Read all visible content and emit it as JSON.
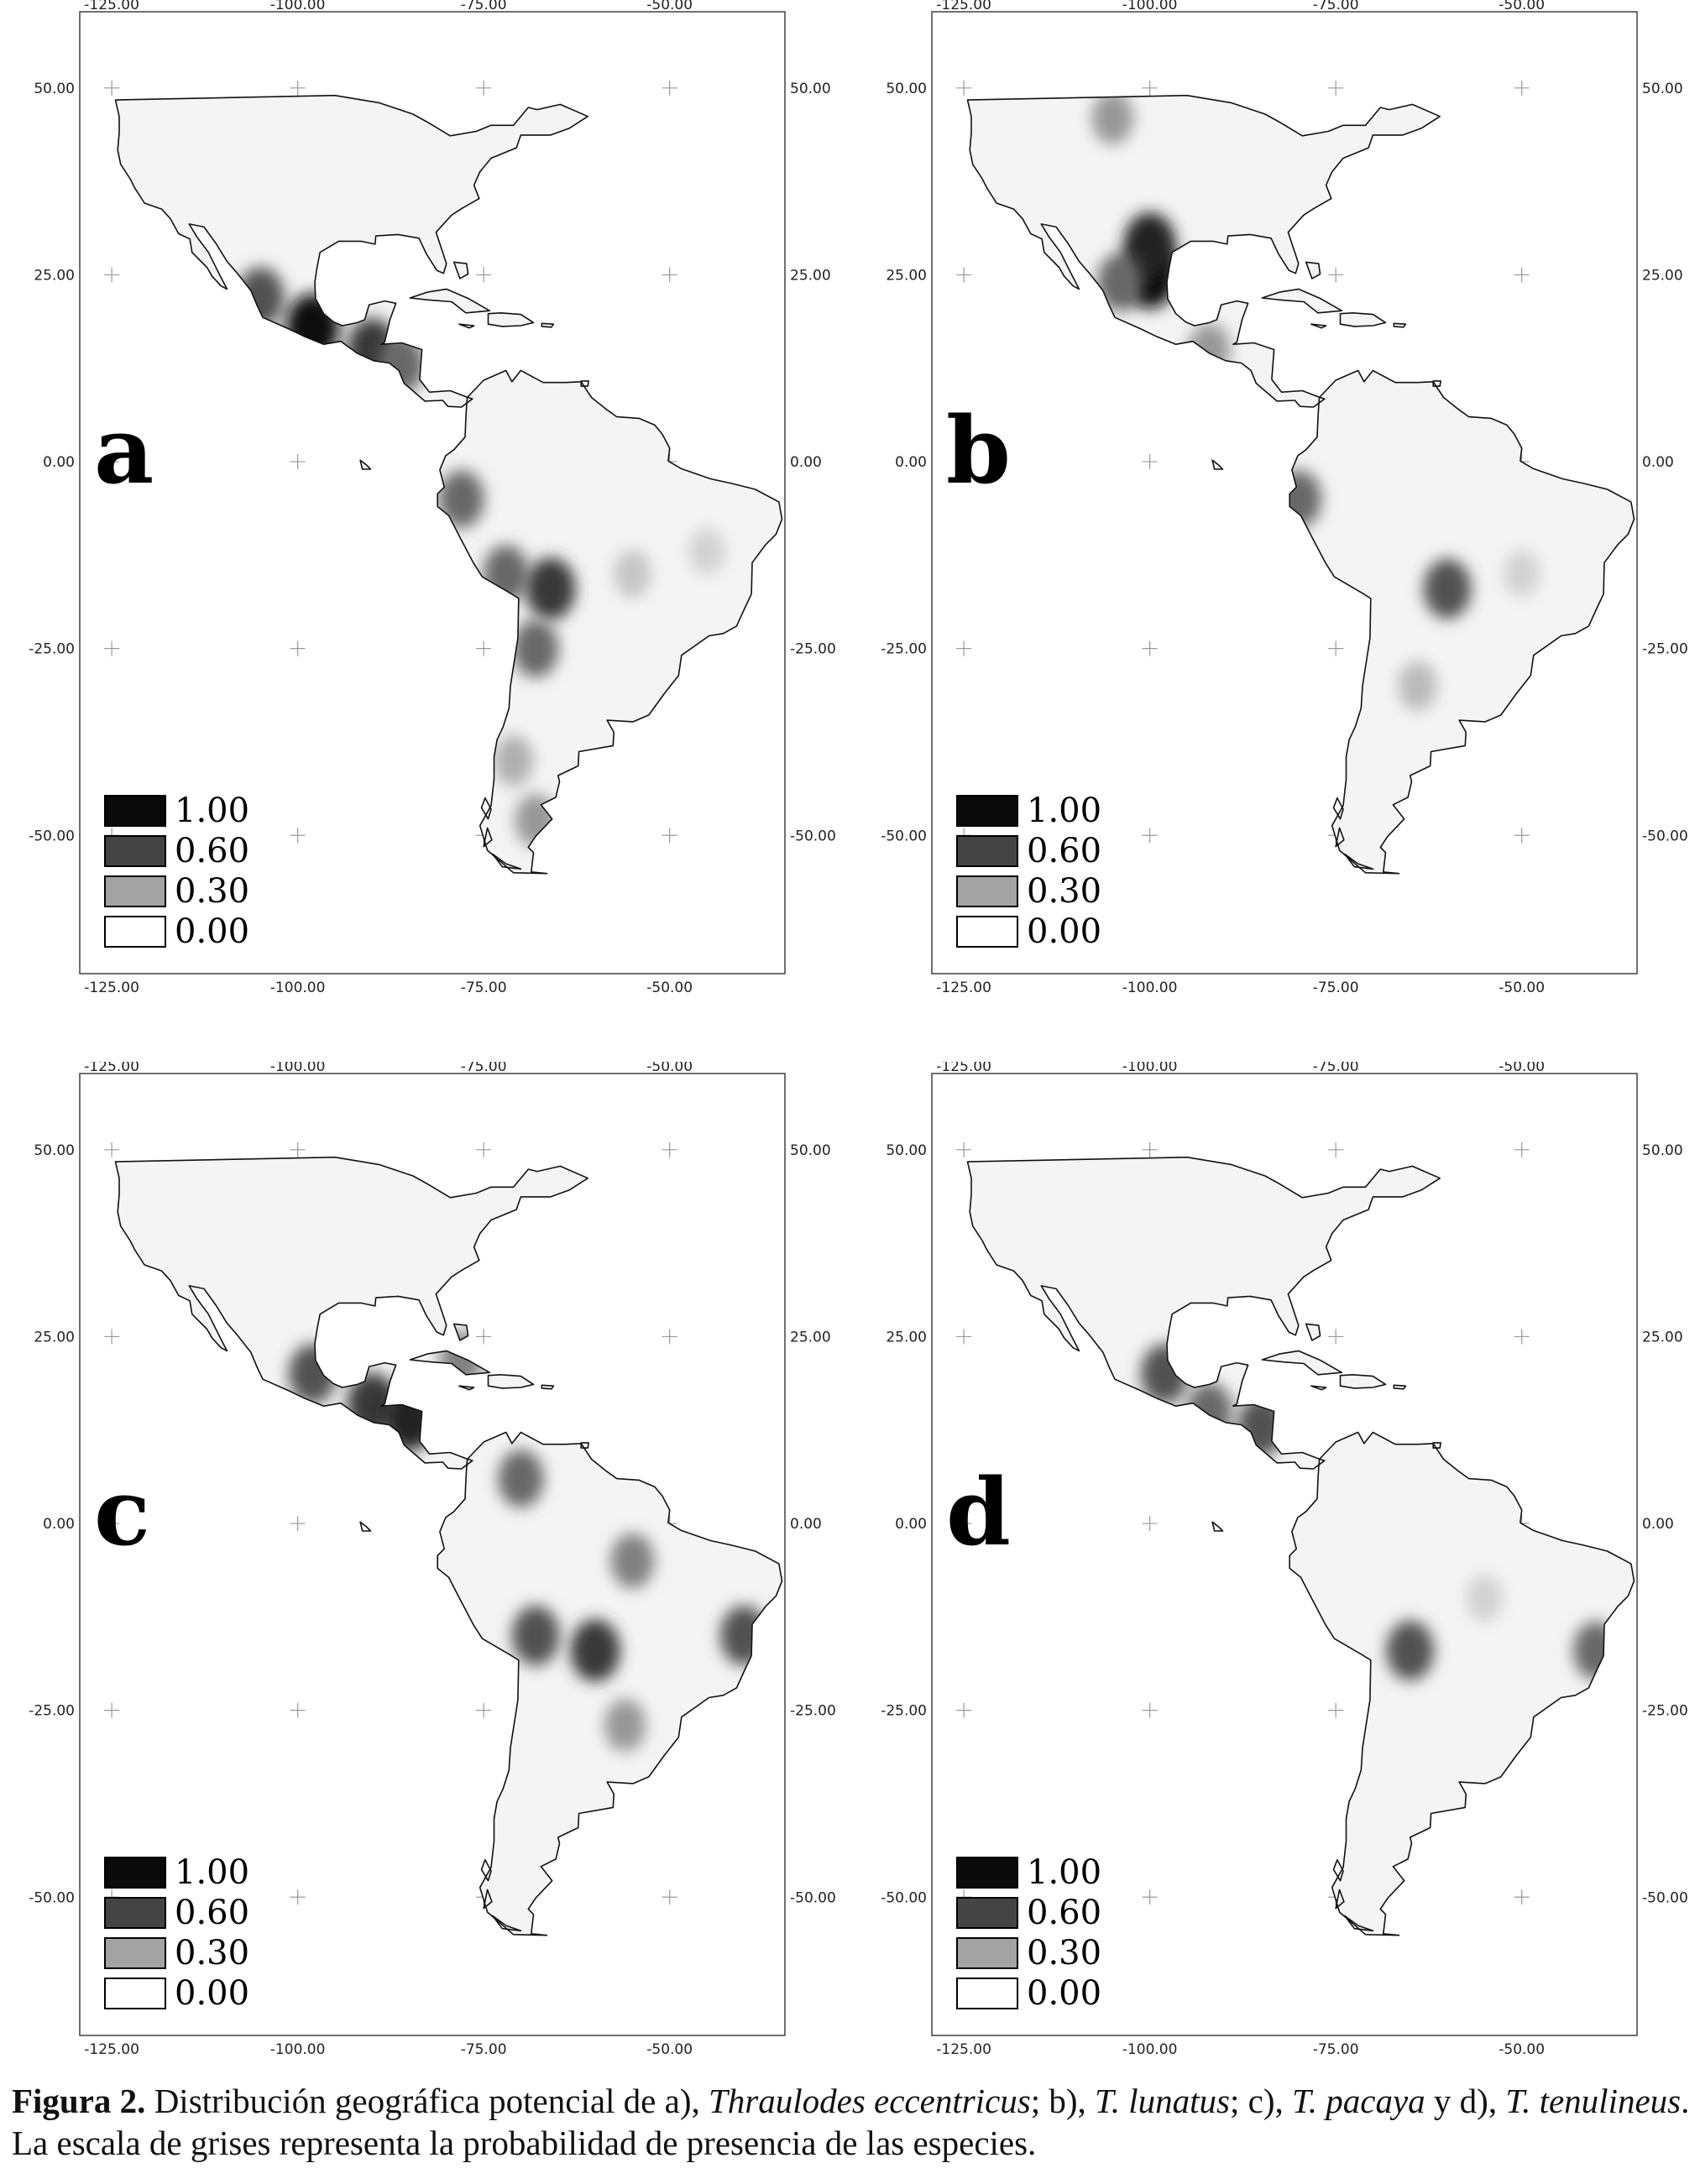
{
  "axes": {
    "x_ticks": [
      "-125.00",
      "-100.00",
      "-75.00",
      "-50.00"
    ],
    "y_ticks": [
      "50.00",
      "25.00",
      "0.00",
      "-25.00",
      "-50.00"
    ]
  },
  "legend": {
    "items": [
      {
        "label": "1.00",
        "color": "#0a0a0a"
      },
      {
        "label": "0.60",
        "color": "#444444"
      },
      {
        "label": "0.30",
        "color": "#a3a3a3"
      },
      {
        "label": "0.00",
        "color": "#ffffff"
      }
    ]
  },
  "panels": [
    {
      "letter": "a",
      "species_caption_label": "a)",
      "species": "Thraulodes eccentricus",
      "hotspots": [
        {
          "lon": -105,
          "lat": 22,
          "prob": 0.7
        },
        {
          "lon": -98,
          "lat": 18,
          "prob": 1.0
        },
        {
          "lon": -90,
          "lat": 15,
          "prob": 0.8
        },
        {
          "lon": -86,
          "lat": 13,
          "prob": 0.6
        },
        {
          "lon": -78,
          "lat": -5,
          "prob": 0.6
        },
        {
          "lon": -72,
          "lat": -15,
          "prob": 0.6
        },
        {
          "lon": -66,
          "lat": -17,
          "prob": 0.8
        },
        {
          "lon": -68,
          "lat": -25,
          "prob": 0.6
        },
        {
          "lon": -71,
          "lat": -40,
          "prob": 0.3
        },
        {
          "lon": -68,
          "lat": -48,
          "prob": 0.4
        },
        {
          "lon": -55,
          "lat": -15,
          "prob": 0.2
        },
        {
          "lon": -45,
          "lat": -12,
          "prob": 0.15
        }
      ]
    },
    {
      "letter": "b",
      "species_caption_label": "b)",
      "species": "T. lunatus",
      "hotspots": [
        {
          "lon": -100,
          "lat": 25,
          "prob": 1.0
        },
        {
          "lon": -100,
          "lat": 29,
          "prob": 0.9
        },
        {
          "lon": -104,
          "lat": 24,
          "prob": 0.6
        },
        {
          "lon": -105,
          "lat": 46,
          "prob": 0.4
        },
        {
          "lon": -92,
          "lat": 15,
          "prob": 0.4
        },
        {
          "lon": -60,
          "lat": -17,
          "prob": 0.7
        },
        {
          "lon": -80,
          "lat": -5,
          "prob": 0.6
        },
        {
          "lon": -64,
          "lat": -30,
          "prob": 0.25
        },
        {
          "lon": -50,
          "lat": -15,
          "prob": 0.15
        }
      ]
    },
    {
      "letter": "c",
      "species_caption_label": "c)",
      "species": "T. pacaya",
      "hotspots": [
        {
          "lon": -98,
          "lat": 20,
          "prob": 0.7
        },
        {
          "lon": -90,
          "lat": 16,
          "prob": 0.8
        },
        {
          "lon": -85,
          "lat": 14,
          "prob": 0.9
        },
        {
          "lon": -78,
          "lat": 22,
          "prob": 0.5
        },
        {
          "lon": -70,
          "lat": 6,
          "prob": 0.6
        },
        {
          "lon": -60,
          "lat": -17,
          "prob": 0.8
        },
        {
          "lon": -68,
          "lat": -15,
          "prob": 0.7
        },
        {
          "lon": -55,
          "lat": -5,
          "prob": 0.5
        },
        {
          "lon": -40,
          "lat": -15,
          "prob": 0.7
        },
        {
          "lon": -56,
          "lat": -27,
          "prob": 0.4
        }
      ]
    },
    {
      "letter": "d",
      "species_caption_label": "d)",
      "species": "T. tenulineus",
      "hotspots": [
        {
          "lon": -98,
          "lat": 20,
          "prob": 0.7
        },
        {
          "lon": -92,
          "lat": 15,
          "prob": 0.6
        },
        {
          "lon": -85,
          "lat": 13,
          "prob": 0.7
        },
        {
          "lon": -65,
          "lat": -17,
          "prob": 0.7
        },
        {
          "lon": -40,
          "lat": -17,
          "prob": 0.6
        },
        {
          "lon": -55,
          "lat": -10,
          "prob": 0.15
        }
      ]
    }
  ],
  "caption": {
    "figure_label": "Figura 2.",
    "text_before": " Distribución geográfica potencial de a), ",
    "sp_a": "Thraulodes eccentricus",
    "sep_b": "; b), ",
    "sp_b": "T. lunatus",
    "sep_c": "; c), ",
    "sp_c": "T. pacaya",
    "sep_d": " y d), ",
    "sp_d": "T. tenulineus",
    "end": ".",
    "line2": "La escala de grises representa la probabilidad de presencia de las especies."
  }
}
